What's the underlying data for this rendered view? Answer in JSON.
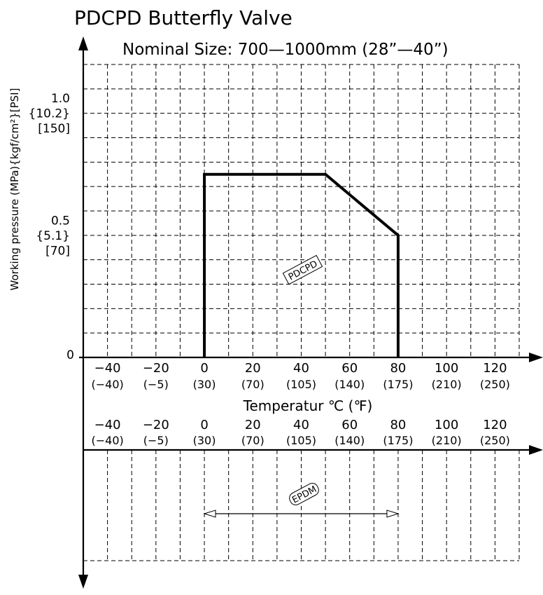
{
  "chart_data": {
    "type": "line",
    "title": "PDCPD Butterfly Valve",
    "subtitle": "Nominal Size: 700—1000mm (28”—40”)",
    "ylabel": "Working pressure (MPa){kgf/cm²}[PSI]",
    "xlabel": "Temperatur ℃ (℉)",
    "x_ticks_celsius": [
      "−40",
      "−20",
      "0",
      "20",
      "40",
      "60",
      "80",
      "100",
      "120"
    ],
    "x_ticks_fahrenheit": [
      "(−40)",
      "(−5)",
      "(30)",
      "(70)",
      "(105)",
      "(140)",
      "(175)",
      "(210)",
      "(250)"
    ],
    "y_ticks": [
      {
        "value": 1.0,
        "lines": [
          "1.0",
          "{10.2}",
          "[150]"
        ]
      },
      {
        "value": 0.5,
        "lines": [
          "0.5",
          "{5.1}",
          "[70]"
        ]
      },
      {
        "value": 0,
        "lines": [
          "0"
        ]
      }
    ],
    "xlim": [
      -50,
      130
    ],
    "ylim": [
      0,
      1.2
    ],
    "grid": true,
    "series": [
      {
        "name": "PDCPD",
        "x": [
          0,
          0,
          50,
          80,
          80
        ],
        "y": [
          0,
          0.75,
          0.75,
          0.5,
          0
        ]
      }
    ],
    "lower_panel": {
      "label": "EPDM",
      "range": [
        0,
        80
      ]
    }
  }
}
